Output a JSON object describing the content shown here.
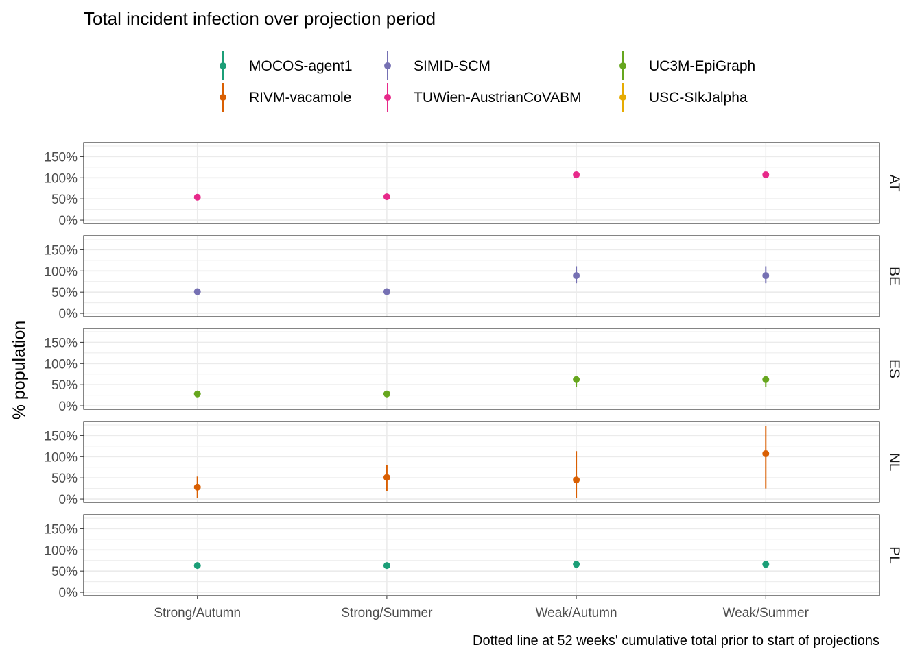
{
  "chart_data": {
    "type": "scatter",
    "title": "Total incident infection over projection period",
    "ylabel": "% population",
    "caption": "Dotted line at 52 weeks' cumulative total prior to start of projections",
    "categories": [
      "Strong/Autumn",
      "Strong/Summer",
      "Weak/Autumn",
      "Weak/Summer"
    ],
    "ylim": [
      -8,
      183
    ],
    "y_ticks": [
      0,
      50,
      100,
      150
    ],
    "y_tick_labels": [
      "0%",
      "50%",
      "100%",
      "150%"
    ],
    "grid": true,
    "legend_position": "top",
    "legend": [
      {
        "name": "MOCOS-agent1",
        "color": "#1b9e77"
      },
      {
        "name": "SIMID-SCM",
        "color": "#7570b3"
      },
      {
        "name": "UC3M-EpiGraph",
        "color": "#66a61e"
      },
      {
        "name": "RIVM-vacamole",
        "color": "#d95f02"
      },
      {
        "name": "TUWien-AustrianCoVABM",
        "color": "#e7298a"
      },
      {
        "name": "USC-SIkJalpha",
        "color": "#e6ab02"
      }
    ],
    "panels": [
      {
        "label": "AT",
        "series": "TUWien-AustrianCoVABM",
        "color": "#e7298a",
        "points": [
          {
            "x": "Strong/Autumn",
            "y": 54,
            "low": 54,
            "high": 54
          },
          {
            "x": "Strong/Summer",
            "y": 55,
            "low": 55,
            "high": 55
          },
          {
            "x": "Weak/Autumn",
            "y": 107,
            "low": 107,
            "high": 107
          },
          {
            "x": "Weak/Summer",
            "y": 107,
            "low": 107,
            "high": 107
          }
        ]
      },
      {
        "label": "BE",
        "series": "SIMID-SCM",
        "color": "#7570b3",
        "points": [
          {
            "x": "Strong/Autumn",
            "y": 51,
            "low": 51,
            "high": 51
          },
          {
            "x": "Strong/Summer",
            "y": 51,
            "low": 51,
            "high": 51
          },
          {
            "x": "Weak/Autumn",
            "y": 89,
            "low": 71,
            "high": 111
          },
          {
            "x": "Weak/Summer",
            "y": 89,
            "low": 71,
            "high": 111
          }
        ]
      },
      {
        "label": "ES",
        "series": "UC3M-EpiGraph",
        "color": "#66a61e",
        "points": [
          {
            "x": "Strong/Autumn",
            "y": 28,
            "low": 26,
            "high": 30
          },
          {
            "x": "Strong/Summer",
            "y": 28,
            "low": 26,
            "high": 30
          },
          {
            "x": "Weak/Autumn",
            "y": 62,
            "low": 44,
            "high": 64
          },
          {
            "x": "Weak/Summer",
            "y": 62,
            "low": 44,
            "high": 64
          }
        ]
      },
      {
        "label": "NL",
        "series": "RIVM-vacamole",
        "color": "#d95f02",
        "points": [
          {
            "x": "Strong/Autumn",
            "y": 28,
            "low": 2,
            "high": 53
          },
          {
            "x": "Strong/Summer",
            "y": 51,
            "low": 19,
            "high": 81
          },
          {
            "x": "Weak/Autumn",
            "y": 45,
            "low": 3,
            "high": 113
          },
          {
            "x": "Weak/Summer",
            "y": 107,
            "low": 25,
            "high": 173
          }
        ]
      },
      {
        "label": "PL",
        "series": "MOCOS-agent1",
        "color": "#1b9e77",
        "points": [
          {
            "x": "Strong/Autumn",
            "y": 63,
            "low": 56,
            "high": 65
          },
          {
            "x": "Strong/Summer",
            "y": 63,
            "low": 56,
            "high": 65
          },
          {
            "x": "Weak/Autumn",
            "y": 66,
            "low": 59,
            "high": 68
          },
          {
            "x": "Weak/Summer",
            "y": 66,
            "low": 59,
            "high": 68
          }
        ]
      }
    ]
  }
}
